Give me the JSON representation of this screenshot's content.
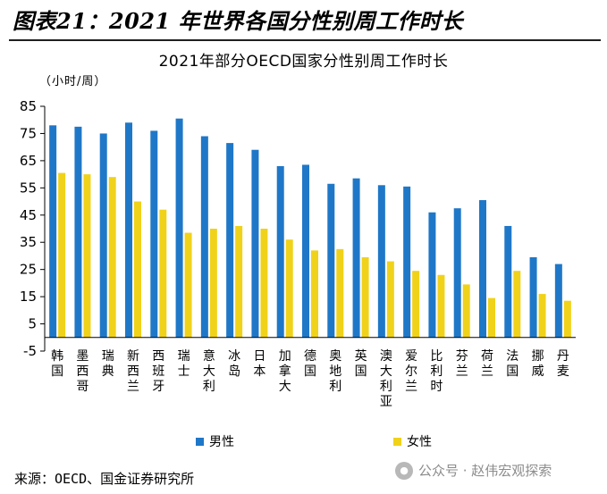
{
  "figure": {
    "title": "图表21：2021 年世界各国分性别周工作时长",
    "source": "来源：OECD、国金证券研究所",
    "watermark": "公众号 · 赵伟宏观探索"
  },
  "colors": {
    "male": "#1f77c8",
    "female": "#f0d21a",
    "axis": "#000000"
  },
  "chart_data": {
    "type": "bar",
    "title": "2021年部分OECD国家分性别周工作时长",
    "ylabel": "（小时/周）",
    "xlabel": "",
    "ylim": [
      -5,
      85
    ],
    "yticks": [
      85,
      75,
      65,
      55,
      45,
      35,
      25,
      15,
      5,
      -5
    ],
    "legend_position": "bottom",
    "categories": [
      "韩国",
      "墨西哥",
      "瑞典",
      "新西兰",
      "西班牙",
      "瑞士",
      "意大利",
      "冰岛",
      "日本",
      "加拿大",
      "德国",
      "奥地利",
      "英国",
      "澳大利亚",
      "爱尔兰",
      "比利时",
      "芬兰",
      "荷兰",
      "法国",
      "挪威",
      "丹麦"
    ],
    "series": [
      {
        "name": "男性",
        "values": [
          78,
          77.5,
          75,
          79,
          76,
          80.5,
          74,
          71.5,
          69,
          63,
          63.5,
          56.5,
          58.5,
          56,
          55.5,
          46,
          47.5,
          50.5,
          41,
          29.5,
          27
        ]
      },
      {
        "name": "女性",
        "values": [
          60.5,
          60,
          59,
          50,
          47,
          38.5,
          40,
          41,
          40,
          36,
          32,
          32.5,
          29.5,
          28,
          24.5,
          23,
          19.5,
          14.5,
          24.5,
          16,
          13.5
        ]
      }
    ]
  }
}
